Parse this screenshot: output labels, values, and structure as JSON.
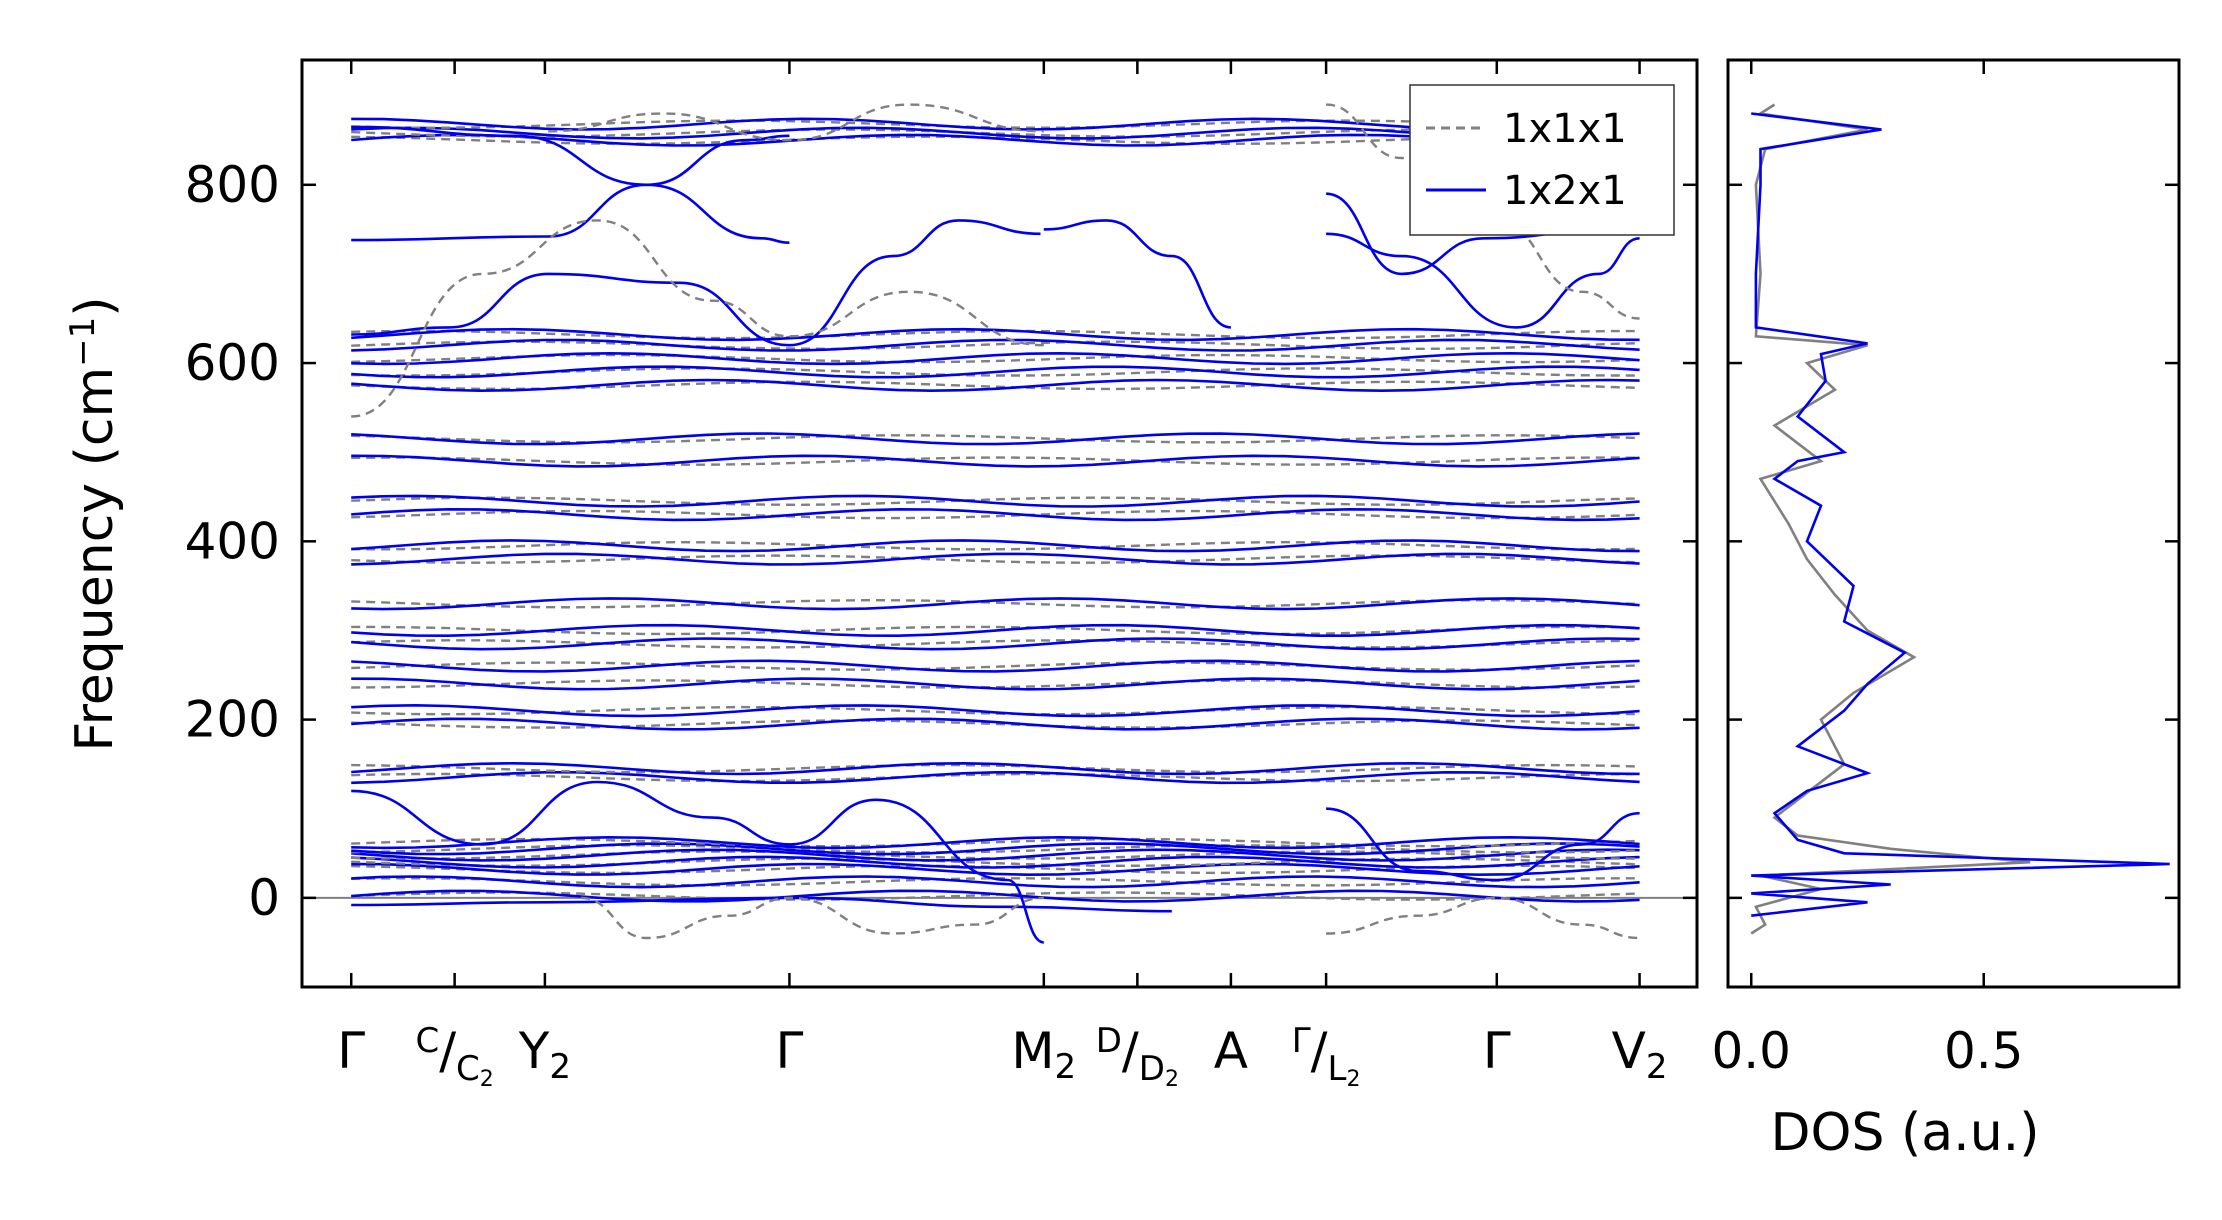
{
  "chart_data": [
    {
      "type": "line",
      "ylabel": "Frequency (cm",
      "ylabel_sup": "−1",
      "ylabel_close": ")",
      "xlabel": "",
      "ylim": [
        -100,
        940
      ],
      "yticks": [
        0,
        200,
        400,
        600,
        800
      ],
      "zero_line": true,
      "grid": false,
      "legend_position": "top-right",
      "kpath": [
        {
          "main": "Γ",
          "x": 0.0
        },
        {
          "main": "C",
          "slash": "/",
          "sub_main": "C",
          "sub": "2",
          "x": 0.63
        },
        {
          "main": "Y",
          "sub": "2",
          "x": 1.18
        },
        {
          "main": "Γ",
          "x": 2.67
        },
        {
          "main": "M",
          "sub": "2",
          "x": 4.22
        },
        {
          "main": "D",
          "slash": "/",
          "sub_main": "D",
          "sub": "2",
          "x": 4.79
        },
        {
          "main": "A",
          "x": 5.36
        },
        {
          "main": "Γ",
          "slash": "/",
          "sub_main": "L",
          "sub": "2",
          "x": 5.94
        },
        {
          "main": "Γ",
          "x": 6.98
        },
        {
          "main": "V",
          "sub": "2",
          "x": 7.85
        }
      ],
      "series": [
        {
          "name": "1x1x1",
          "color": "#808080",
          "style": "dashed"
        },
        {
          "name": "1x2x1",
          "color": "#0000ee",
          "style": "solid"
        }
      ],
      "flat_bands_cm1": [
        2,
        18,
        32,
        40,
        48,
        55,
        62,
        135,
        145,
        195,
        210,
        240,
        260,
        285,
        300,
        330,
        380,
        395,
        430,
        445,
        490,
        515,
        575,
        590,
        605,
        620,
        632,
        850,
        858,
        868
      ],
      "dispersive_bands": [
        {
          "name": "1x2x1",
          "points": [
            [
              0,
              632
            ],
            [
              0.6,
              640
            ],
            [
              1.2,
              700
            ],
            [
              2.0,
              690
            ],
            [
              2.67,
              620
            ],
            [
              3.3,
              720
            ],
            [
              3.7,
              760
            ],
            [
              4.2,
              745
            ]
          ]
        },
        {
          "name": "1x2x1",
          "points": [
            [
              0,
              738
            ],
            [
              1.2,
              742
            ],
            [
              1.8,
              800
            ],
            [
              2.4,
              850
            ],
            [
              2.67,
              855
            ]
          ]
        },
        {
          "name": "1x2x1",
          "points": [
            [
              0,
              865
            ],
            [
              1.0,
              855
            ],
            [
              1.8,
              800
            ],
            [
              2.5,
              740
            ],
            [
              2.67,
              735
            ]
          ]
        },
        {
          "name": "1x2x1",
          "points": [
            [
              4.22,
              750
            ],
            [
              4.6,
              760
            ],
            [
              5.0,
              720
            ],
            [
              5.36,
              640
            ]
          ]
        },
        {
          "name": "1x2x1",
          "points": [
            [
              5.94,
              790
            ],
            [
              6.4,
              700
            ],
            [
              6.9,
              740
            ],
            [
              7.85,
              755
            ]
          ]
        },
        {
          "name": "1x2x1",
          "points": [
            [
              5.94,
              745
            ],
            [
              6.4,
              720
            ],
            [
              7.1,
              640
            ],
            [
              7.6,
              700
            ],
            [
              7.85,
              740
            ]
          ]
        },
        {
          "name": "1x2x1",
          "points": [
            [
              0,
              120
            ],
            [
              0.8,
              60
            ],
            [
              1.5,
              130
            ],
            [
              2.2,
              90
            ],
            [
              2.67,
              60
            ],
            [
              3.2,
              110
            ],
            [
              4.0,
              20
            ],
            [
              4.22,
              -50
            ]
          ]
        },
        {
          "name": "1x2x1",
          "points": [
            [
              0,
              -8
            ],
            [
              1.18,
              -5
            ],
            [
              2.67,
              0
            ],
            [
              4.0,
              -10
            ],
            [
              5.0,
              -15
            ]
          ]
        },
        {
          "name": "1x2x1",
          "points": [
            [
              5.94,
              100
            ],
            [
              6.5,
              30
            ],
            [
              6.98,
              20
            ],
            [
              7.5,
              60
            ],
            [
              7.85,
              95
            ]
          ]
        },
        {
          "name": "1x1x1",
          "points": [
            [
              1.4,
              0
            ],
            [
              1.8,
              -45
            ],
            [
              2.3,
              -20
            ],
            [
              2.67,
              0
            ],
            [
              3.3,
              -40
            ],
            [
              3.8,
              -30
            ],
            [
              4.22,
              0
            ]
          ]
        },
        {
          "name": "1x1x1",
          "points": [
            [
              5.94,
              -40
            ],
            [
              6.5,
              -20
            ],
            [
              6.98,
              0
            ],
            [
              7.5,
              -30
            ],
            [
              7.85,
              -45
            ]
          ]
        },
        {
          "name": "1x1x1",
          "points": [
            [
              0,
              540
            ],
            [
              0.8,
              700
            ],
            [
              1.5,
              760
            ],
            [
              2.2,
              670
            ],
            [
              2.67,
              630
            ],
            [
              3.4,
              680
            ],
            [
              4.22,
              620
            ]
          ]
        },
        {
          "name": "1x1x1",
          "points": [
            [
              1.2,
              860
            ],
            [
              1.9,
              880
            ],
            [
              2.67,
              850
            ],
            [
              3.4,
              890
            ],
            [
              4.22,
              860
            ]
          ]
        },
        {
          "name": "1x1x1",
          "points": [
            [
              5.94,
              890
            ],
            [
              6.4,
              830
            ],
            [
              6.98,
              760
            ],
            [
              7.5,
              680
            ],
            [
              7.85,
              650
            ]
          ]
        }
      ]
    },
    {
      "type": "line",
      "xlabel": "DOS (a.u.)",
      "xlim": [
        -0.05,
        0.92
      ],
      "ylim": [
        -100,
        940
      ],
      "xticks": [
        "0.0",
        "0.5"
      ],
      "xtick_values": [
        0.0,
        0.5
      ],
      "series": [
        {
          "name": "1x1x1",
          "color": "#808080",
          "points": [
            [
              0,
              -40
            ],
            [
              0.03,
              -30
            ],
            [
              0.01,
              -10
            ],
            [
              0.15,
              10
            ],
            [
              0.02,
              25
            ],
            [
              0.6,
              40
            ],
            [
              0.3,
              55
            ],
            [
              0.1,
              70
            ],
            [
              0.05,
              90
            ],
            [
              0.1,
              110
            ],
            [
              0.2,
              150
            ],
            [
              0.15,
              200
            ],
            [
              0.22,
              230
            ],
            [
              0.35,
              270
            ],
            [
              0.25,
              300
            ],
            [
              0.18,
              340
            ],
            [
              0.12,
              380
            ],
            [
              0.08,
              420
            ],
            [
              0.02,
              470
            ],
            [
              0.15,
              490
            ],
            [
              0.05,
              530
            ],
            [
              0.18,
              570
            ],
            [
              0.12,
              600
            ],
            [
              0.25,
              620
            ],
            [
              0.01,
              630
            ],
            [
              0.02,
              700
            ],
            [
              0.01,
              800
            ],
            [
              0.03,
              840
            ],
            [
              0.25,
              862
            ],
            [
              0.02,
              880
            ],
            [
              0.05,
              890
            ]
          ]
        },
        {
          "name": "1x2x1",
          "color": "#0000ee",
          "points": [
            [
              0,
              -20
            ],
            [
              0.25,
              -5
            ],
            [
              0.0,
              5
            ],
            [
              0.3,
              15
            ],
            [
              0.0,
              25
            ],
            [
              0.9,
              38
            ],
            [
              0.2,
              50
            ],
            [
              0.1,
              65
            ],
            [
              0.05,
              95
            ],
            [
              0.12,
              120
            ],
            [
              0.25,
              140
            ],
            [
              0.1,
              170
            ],
            [
              0.2,
              210
            ],
            [
              0.25,
              240
            ],
            [
              0.33,
              275
            ],
            [
              0.2,
              310
            ],
            [
              0.22,
              350
            ],
            [
              0.12,
              400
            ],
            [
              0.15,
              440
            ],
            [
              0.05,
              470
            ],
            [
              0.1,
              490
            ],
            [
              0.2,
              500
            ],
            [
              0.1,
              540
            ],
            [
              0.16,
              580
            ],
            [
              0.15,
              610
            ],
            [
              0.25,
              622
            ],
            [
              0.01,
              640
            ],
            [
              0.01,
              700
            ],
            [
              0.02,
              800
            ],
            [
              0.02,
              840
            ],
            [
              0.28,
              862
            ],
            [
              0.0,
              880
            ]
          ]
        }
      ]
    }
  ]
}
